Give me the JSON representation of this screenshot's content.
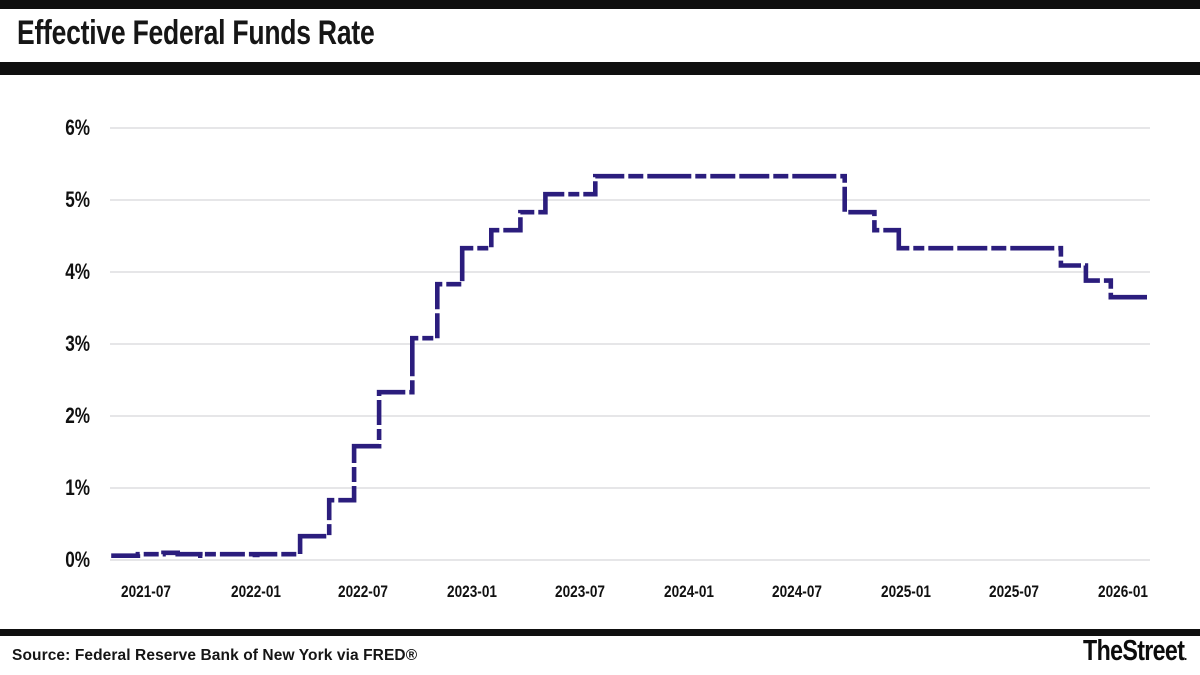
{
  "header": {
    "title": "Effective Federal Funds Rate"
  },
  "footer": {
    "source": "Source: Federal Reserve Bank of New York via FRED®",
    "brand": "TheStreet",
    "brand_dot": "."
  },
  "chart_data": {
    "type": "line",
    "subtype": "step-after",
    "title": "Effective Federal Funds Rate",
    "unit": "%",
    "grid": true,
    "legend": false,
    "line_color": "#2b1d7d",
    "grid_color": "#e6e6e8",
    "label_color": "#111111",
    "x_axis": {
      "domain": [
        "2021-05-01",
        "2026-02-15"
      ],
      "ticks": [
        {
          "date": "2021-07-01",
          "label": "2021-07"
        },
        {
          "date": "2022-01-01",
          "label": "2022-01"
        },
        {
          "date": "2022-07-01",
          "label": "2022-07"
        },
        {
          "date": "2023-01-01",
          "label": "2023-01"
        },
        {
          "date": "2023-07-01",
          "label": "2023-07"
        },
        {
          "date": "2024-01-01",
          "label": "2024-01"
        },
        {
          "date": "2024-07-01",
          "label": "2024-07"
        },
        {
          "date": "2025-01-01",
          "label": "2025-01"
        },
        {
          "date": "2025-07-01",
          "label": "2025-07"
        },
        {
          "date": "2026-01-01",
          "label": "2026-01"
        }
      ]
    },
    "y_axis": {
      "min": 0,
      "max": 6,
      "ticks": [
        {
          "value": 0,
          "label": "0%"
        },
        {
          "value": 1,
          "label": "1%"
        },
        {
          "value": 2,
          "label": "2%"
        },
        {
          "value": 3,
          "label": "3%"
        },
        {
          "value": 4,
          "label": "4%"
        },
        {
          "value": 5,
          "label": "5%"
        },
        {
          "value": 6,
          "label": "6%"
        }
      ]
    },
    "series": [
      {
        "name": "Effective Federal Funds Rate (%)",
        "points": [
          [
            "2021-05-03",
            0.06
          ],
          [
            "2021-06-17",
            0.08
          ],
          [
            "2021-07-30",
            0.1
          ],
          [
            "2021-08-23",
            0.08
          ],
          [
            "2021-09-30",
            0.06
          ],
          [
            "2021-10-04",
            0.08
          ],
          [
            "2021-12-31",
            0.07
          ],
          [
            "2022-01-04",
            0.08
          ],
          [
            "2022-03-17",
            0.33
          ],
          [
            "2022-05-05",
            0.83
          ],
          [
            "2022-06-16",
            1.58
          ],
          [
            "2022-07-28",
            2.33
          ],
          [
            "2022-09-22",
            3.08
          ],
          [
            "2022-11-03",
            3.83
          ],
          [
            "2022-12-15",
            4.33
          ],
          [
            "2023-02-02",
            4.58
          ],
          [
            "2023-03-23",
            4.83
          ],
          [
            "2023-05-04",
            5.08
          ],
          [
            "2023-07-27",
            5.33
          ],
          [
            "2024-09-19",
            4.83
          ],
          [
            "2024-11-08",
            4.58
          ],
          [
            "2024-12-19",
            4.33
          ],
          [
            "2025-09-18",
            4.09
          ],
          [
            "2025-10-30",
            3.88
          ],
          [
            "2025-12-11",
            3.65
          ],
          [
            "2026-02-10",
            3.65
          ]
        ]
      }
    ]
  }
}
